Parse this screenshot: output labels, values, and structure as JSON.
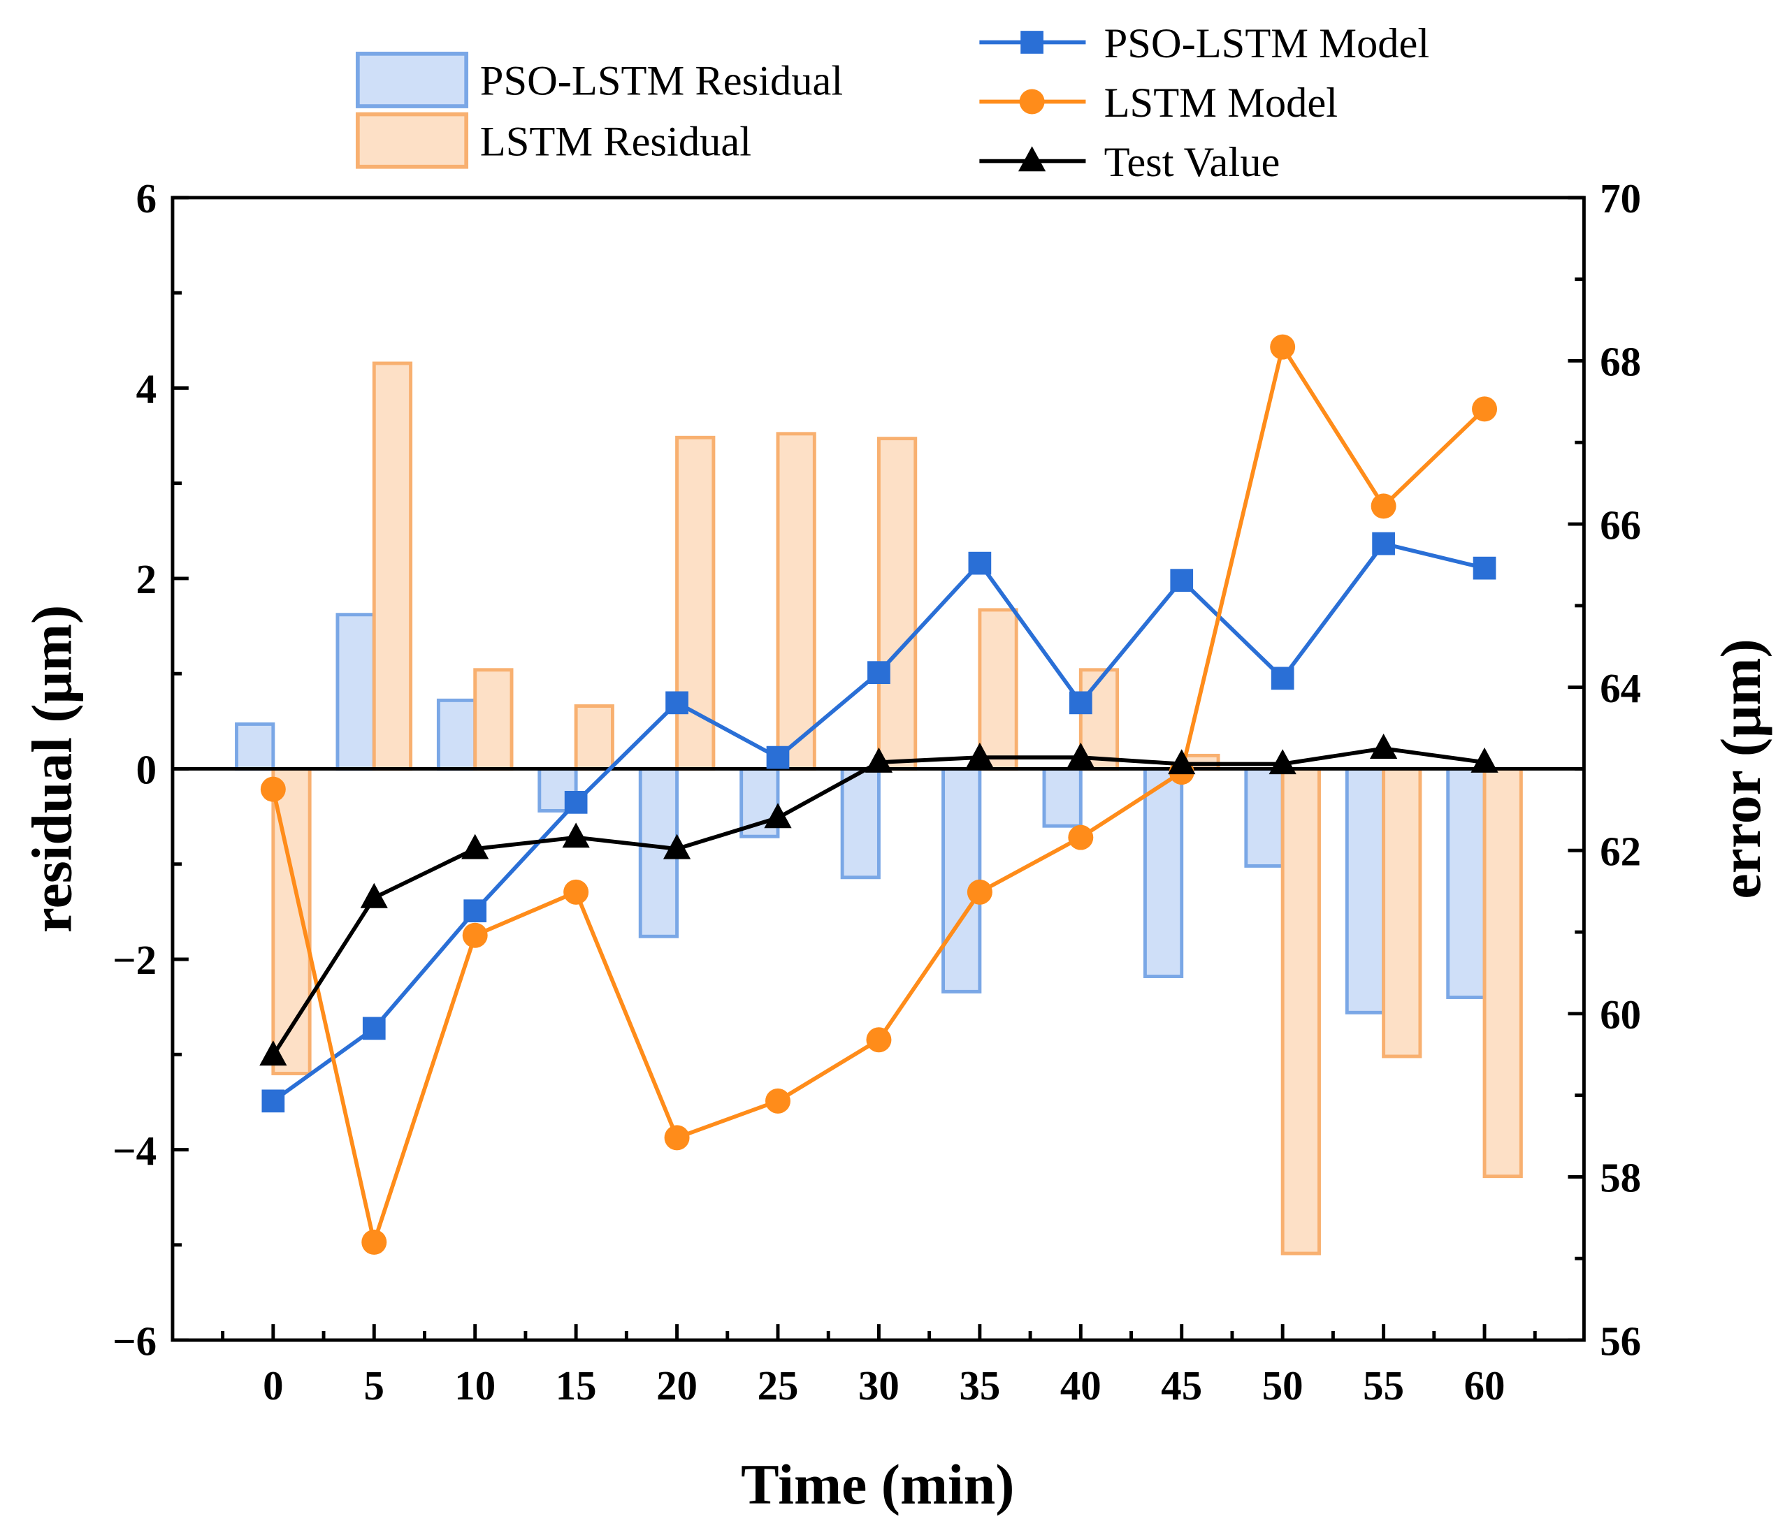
{
  "chart_data": {
    "type": "bar",
    "xlabel": "Time (min)",
    "ylabel": "residual (μm)",
    "y2label": "error (μm)",
    "categories": [
      "0",
      "5",
      "10",
      "15",
      "20",
      "25",
      "30",
      "35",
      "40",
      "45",
      "50",
      "55",
      "60"
    ],
    "ylim": [
      -6,
      6
    ],
    "yticks": [
      "−6",
      "−4",
      "−2",
      "0",
      "2",
      "4",
      "6"
    ],
    "y2lim": [
      56,
      70
    ],
    "y2ticks": [
      "56",
      "58",
      "60",
      "62",
      "64",
      "66",
      "68",
      "70"
    ],
    "grid": false,
    "bar_series": [
      {
        "name": "PSO-LSTM Residual",
        "axis": "left",
        "fill": "#cfdff8",
        "stroke": "#7aa7e6",
        "values": [
          0.47,
          1.62,
          0.72,
          -0.44,
          -1.76,
          -0.71,
          -1.14,
          -2.34,
          -0.6,
          -2.18,
          -1.02,
          -2.56,
          -2.4
        ]
      },
      {
        "name": "LSTM Residual",
        "axis": "left",
        "fill": "#fde0c6",
        "stroke": "#f8b070",
        "values": [
          -3.2,
          4.26,
          1.04,
          0.66,
          3.48,
          3.52,
          3.47,
          1.67,
          1.04,
          0.14,
          -5.09,
          -3.02,
          -4.28
        ]
      }
    ],
    "line_series": [
      {
        "name": "PSO-LSTM Model",
        "axis": "right",
        "color": "#2a6fd6",
        "marker": "square",
        "values": [
          58.93,
          59.82,
          61.26,
          62.59,
          63.81,
          63.14,
          64.18,
          65.52,
          63.81,
          65.31,
          64.11,
          65.76,
          65.46
        ]
      },
      {
        "name": "LSTM Model",
        "axis": "right",
        "color": "#ff8c1a",
        "marker": "circle",
        "values": [
          62.75,
          57.2,
          60.96,
          61.49,
          58.48,
          58.93,
          59.68,
          61.49,
          62.16,
          62.96,
          68.17,
          66.22,
          67.41
        ]
      },
      {
        "name": "Test Value",
        "axis": "right",
        "color": "#000000",
        "marker": "triangle",
        "values": [
          59.49,
          61.42,
          62.02,
          62.16,
          62.02,
          62.4,
          63.08,
          63.14,
          63.14,
          63.06,
          63.06,
          63.25,
          63.08
        ]
      }
    ],
    "legend_placement": "top"
  }
}
